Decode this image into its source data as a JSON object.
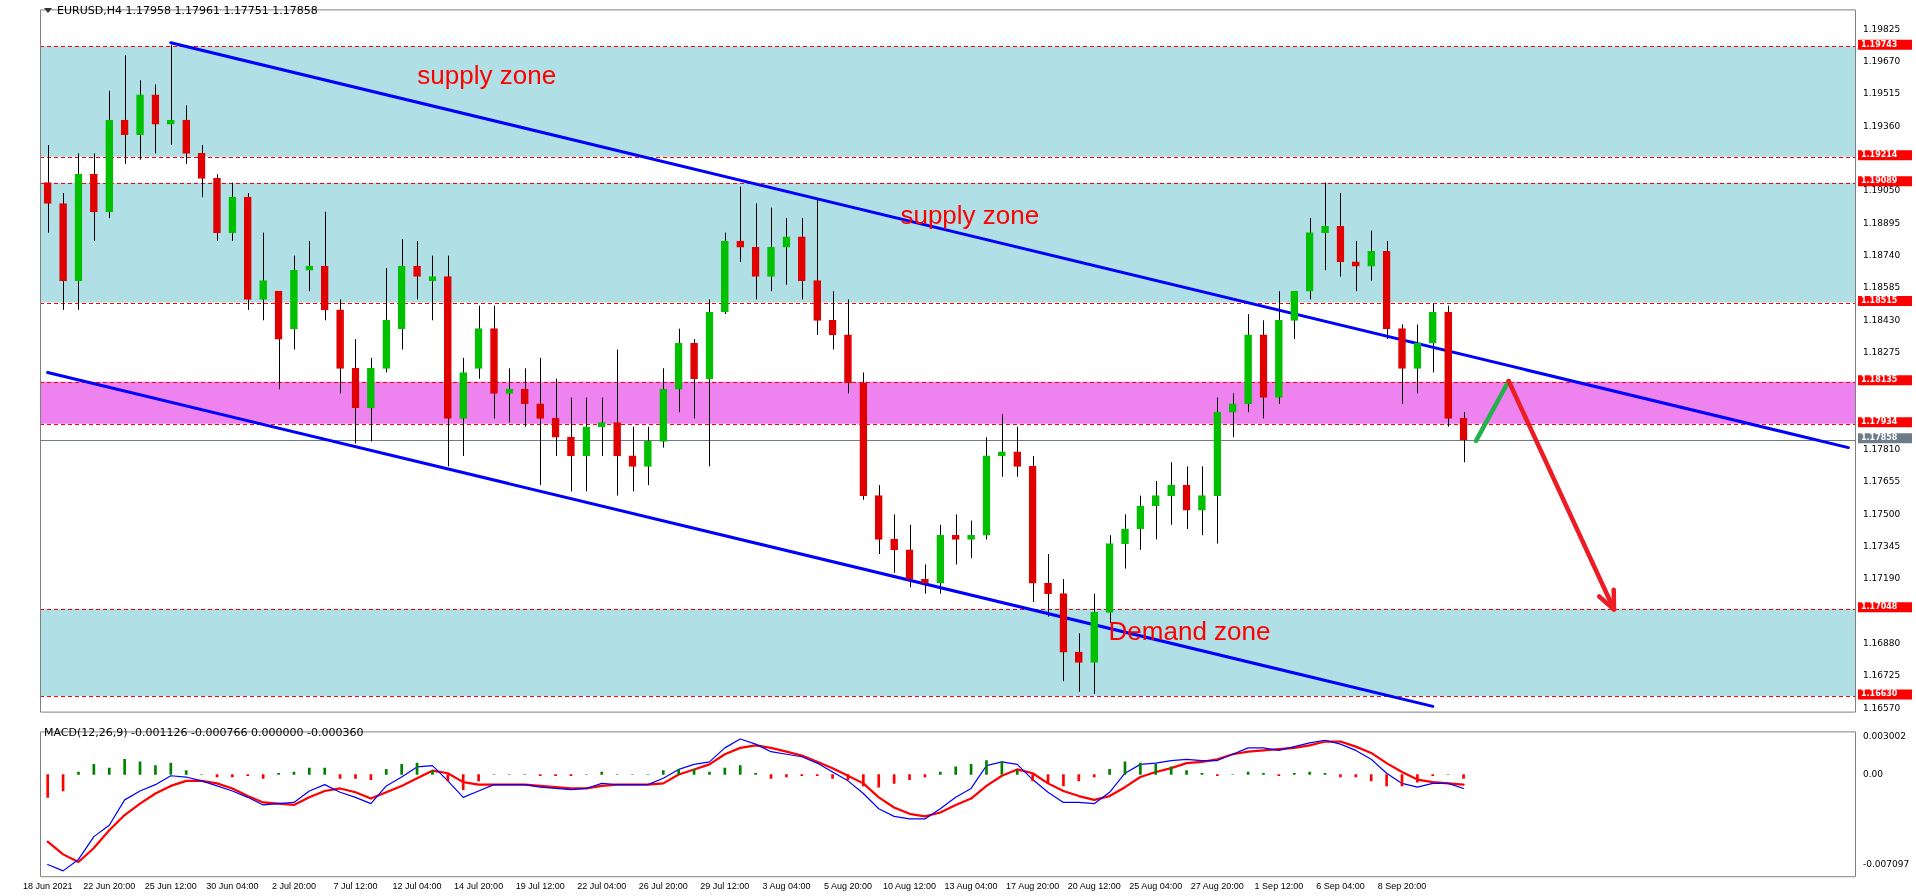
{
  "chart_data": [
    {
      "type": "candlestick",
      "title": "EURUSD,H4 1.17958 1.17961 1.17751 1.17858",
      "categories": [
        null,
        null,
        null,
        null,
        null,
        null,
        null,
        null,
        null,
        null,
        null,
        null,
        null,
        null,
        null,
        null,
        null,
        null,
        null,
        null,
        null,
        null,
        null,
        null,
        null,
        null,
        null,
        null,
        null,
        null,
        null,
        null,
        null,
        null,
        null,
        null,
        null,
        null,
        null,
        null,
        null,
        null,
        null,
        null,
        null,
        null,
        null,
        null,
        null,
        null,
        null,
        null,
        null,
        null,
        null,
        null,
        null,
        null,
        null,
        null,
        null,
        null,
        null,
        null,
        null,
        null,
        null,
        null,
        null,
        null,
        null,
        null,
        null,
        null,
        null,
        null,
        null,
        null,
        null,
        null,
        null,
        null,
        null,
        null,
        null,
        null,
        null,
        null,
        null,
        null,
        null,
        null,
        null,
        null,
        null,
        null,
        null,
        null,
        null,
        null,
        null,
        null,
        null,
        null,
        null,
        null,
        null,
        null,
        null,
        null,
        null,
        null,
        null,
        null,
        null,
        null,
        null,
        null
      ],
      "ohlc": [
        [
          1.1909,
          1.1927,
          1.1885,
          1.1899
        ],
        [
          1.1899,
          1.1904,
          1.1848,
          1.1862
        ],
        [
          1.1862,
          1.1923,
          1.1848,
          1.1913
        ],
        [
          1.1913,
          1.1923,
          1.1881,
          1.1895
        ],
        [
          1.1895,
          1.1953,
          1.1892,
          1.1939
        ],
        [
          1.1939,
          1.197,
          1.1918,
          1.1932
        ],
        [
          1.1932,
          1.1958,
          1.192,
          1.1951
        ],
        [
          1.1951,
          1.1956,
          1.1923,
          1.1937
        ],
        [
          1.1937,
          1.1975,
          1.1927,
          1.1939
        ],
        [
          1.1939,
          1.1946,
          1.1918,
          1.1923
        ],
        [
          1.1923,
          1.1927,
          1.1902,
          1.1911
        ],
        [
          1.1911,
          1.1913,
          1.1881,
          1.1885
        ],
        [
          1.1885,
          1.1909,
          1.1881,
          1.1902
        ],
        [
          1.1902,
          1.1904,
          1.1848,
          1.1853
        ],
        [
          1.1853,
          1.1885,
          1.1843,
          1.1862
        ],
        [
          1.1857,
          1.1857,
          1.181,
          1.1834
        ],
        [
          1.1839,
          1.1874,
          1.1829,
          1.1867
        ],
        [
          1.1867,
          1.1881,
          1.1857,
          1.1869
        ],
        [
          1.1869,
          1.1895,
          1.1843,
          1.1848
        ],
        [
          1.1848,
          1.1853,
          1.1808,
          1.182
        ],
        [
          1.182,
          1.1834,
          1.1784,
          1.1801
        ],
        [
          1.1801,
          1.1825,
          1.1785,
          1.182
        ],
        [
          1.182,
          1.1868,
          1.1818,
          1.1843
        ],
        [
          1.1839,
          1.1882,
          1.1829,
          1.1869
        ],
        [
          1.1869,
          1.1881,
          1.1853,
          1.1864
        ],
        [
          1.1862,
          1.1874,
          1.1843,
          1.1864
        ],
        [
          1.1864,
          1.1874,
          1.1773,
          1.1796
        ],
        [
          1.1796,
          1.1825,
          1.1778,
          1.1818
        ],
        [
          1.182,
          1.185,
          1.1815,
          1.1839
        ],
        [
          1.1839,
          1.185,
          1.1796,
          1.1808
        ],
        [
          1.1808,
          1.182,
          1.1794,
          1.181
        ],
        [
          1.181,
          1.182,
          1.1792,
          1.1803
        ],
        [
          1.1803,
          1.1825,
          1.1764,
          1.1796
        ],
        [
          1.1796,
          1.1815,
          1.1778,
          1.1787
        ],
        [
          1.1787,
          1.1806,
          1.1761,
          1.1778
        ],
        [
          1.1778,
          1.1806,
          1.1761,
          1.1792
        ],
        [
          1.1792,
          1.1806,
          1.1778,
          1.1794
        ],
        [
          1.1794,
          1.1829,
          1.1759,
          1.1778
        ],
        [
          1.1778,
          1.1792,
          1.1761,
          1.1773
        ],
        [
          1.1773,
          1.1792,
          1.1764,
          1.1785
        ],
        [
          1.1785,
          1.182,
          1.1782,
          1.181
        ],
        [
          1.181,
          1.1839,
          1.1799,
          1.1832
        ],
        [
          1.1832,
          1.1834,
          1.1796,
          1.1815
        ],
        [
          1.1815,
          1.1853,
          1.1773,
          1.1847
        ],
        [
          1.1847,
          1.1885,
          1.1846,
          1.1881
        ],
        [
          1.1881,
          1.1907,
          1.1871,
          1.1878
        ],
        [
          1.1878,
          1.1899,
          1.1853,
          1.1864
        ],
        [
          1.1864,
          1.1897,
          1.1857,
          1.1878
        ],
        [
          1.1878,
          1.1892,
          1.186,
          1.1883
        ],
        [
          1.1883,
          1.1892,
          1.1853,
          1.1862
        ],
        [
          1.1862,
          1.1901,
          1.1836,
          1.1843
        ],
        [
          1.1843,
          1.1857,
          1.1829,
          1.1836
        ],
        [
          1.1836,
          1.1853,
          1.1808,
          1.1813
        ],
        [
          1.1813,
          1.1818,
          1.1757,
          1.1759
        ],
        [
          1.1759,
          1.1764,
          1.1731,
          1.1738
        ],
        [
          1.1738,
          1.175,
          1.1722,
          1.1733
        ],
        [
          1.1733,
          1.1745,
          1.1715,
          1.1719
        ],
        [
          1.1719,
          1.1726,
          1.1712,
          1.1717
        ],
        [
          1.1717,
          1.1745,
          1.1712,
          1.174
        ],
        [
          1.174,
          1.175,
          1.1726,
          1.1738
        ],
        [
          1.1738,
          1.1747,
          1.1729,
          1.174
        ],
        [
          1.174,
          1.1787,
          1.1738,
          1.1778
        ],
        [
          1.1778,
          1.1798,
          1.1768,
          1.178
        ],
        [
          1.178,
          1.1792,
          1.1768,
          1.1773
        ],
        [
          1.1773,
          1.1778,
          1.1708,
          1.1717
        ],
        [
          1.1717,
          1.1731,
          1.1701,
          1.1712
        ],
        [
          1.1712,
          1.1719,
          1.167,
          1.1684
        ],
        [
          1.1684,
          1.1693,
          1.1665,
          1.1679
        ],
        [
          1.1679,
          1.1712,
          1.1664,
          1.1703
        ],
        [
          1.1703,
          1.174,
          1.1698,
          1.1736
        ],
        [
          1.1736,
          1.175,
          1.1724,
          1.1743
        ],
        [
          1.1743,
          1.1759,
          1.1733,
          1.1754
        ],
        [
          1.1754,
          1.1766,
          1.1738,
          1.1759
        ],
        [
          1.1759,
          1.1775,
          1.1745,
          1.1764
        ],
        [
          1.1764,
          1.1773,
          1.1743,
          1.1752
        ],
        [
          1.1752,
          1.1773,
          1.174,
          1.1759
        ],
        [
          1.1759,
          1.1806,
          1.1736,
          1.1799
        ],
        [
          1.1799,
          1.1808,
          1.1787,
          1.1803
        ],
        [
          1.1803,
          1.1846,
          1.1799,
          1.1836
        ],
        [
          1.1836,
          1.1843,
          1.1796,
          1.1806
        ],
        [
          1.1806,
          1.1857,
          1.1803,
          1.1843
        ],
        [
          1.1843,
          1.1857,
          1.1834,
          1.1857
        ],
        [
          1.1857,
          1.1892,
          1.1853,
          1.1885
        ],
        [
          1.1885,
          1.1909,
          1.1867,
          1.1888
        ],
        [
          1.1888,
          1.1904,
          1.1864,
          1.1871
        ],
        [
          1.1871,
          1.1881,
          1.1857,
          1.1869
        ],
        [
          1.1869,
          1.1886,
          1.1862,
          1.1876
        ],
        [
          1.1876,
          1.1881,
          1.1834,
          1.1839
        ],
        [
          1.1839,
          1.1841,
          1.1803,
          1.182
        ],
        [
          1.182,
          1.1841,
          1.1808,
          1.1832
        ],
        [
          1.1832,
          1.1851,
          1.1818,
          1.1847
        ],
        [
          1.1847,
          1.185,
          1.1792,
          1.1796
        ],
        [
          1.1796,
          1.1799,
          1.1775,
          1.17858
        ],
        null,
        null,
        null,
        null,
        null,
        null,
        null,
        null,
        null,
        null,
        null,
        null,
        null,
        null,
        null,
        null,
        null,
        null,
        null,
        null,
        null,
        null,
        null,
        null,
        null
      ],
      "series": [
        {
          "type": "line",
          "color": "#0000ff",
          "values": [
            null,
            null,
            null,
            null,
            null,
            null,
            null,
            null,
            1.1976,
            null,
            null,
            null,
            null,
            null,
            null,
            null,
            null,
            null,
            null,
            null,
            null,
            null,
            null,
            null,
            null,
            null,
            null,
            null,
            null,
            null,
            null,
            null,
            null,
            null,
            null,
            null,
            null,
            null,
            null,
            null,
            null,
            null,
            null,
            null,
            null,
            null,
            null,
            null,
            null,
            null,
            null,
            null,
            null,
            null,
            null,
            null,
            null,
            null,
            null,
            null,
            null,
            null,
            null,
            null,
            null,
            null,
            null,
            null,
            null,
            null,
            null,
            null,
            null,
            null,
            null,
            null,
            null,
            null,
            null,
            null,
            null,
            null,
            null,
            null,
            null,
            null,
            null,
            null,
            null,
            null,
            null,
            null,
            null,
            null,
            null,
            null,
            null,
            null,
            null,
            null,
            null,
            null,
            null,
            null,
            null,
            null,
            null,
            null,
            null,
            null,
            null,
            null,
            null,
            null,
            null,
            null,
            null,
            1.1782
          ]
        },
        {
          "type": "line",
          "color": "#0000ff",
          "values": [
            1.1818,
            null,
            null,
            null,
            null,
            null,
            null,
            null,
            null,
            null,
            null,
            null,
            null,
            null,
            null,
            null,
            null,
            null,
            null,
            null,
            null,
            null,
            null,
            null,
            null,
            null,
            null,
            null,
            null,
            null,
            null,
            null,
            null,
            null,
            null,
            null,
            null,
            null,
            null,
            null,
            null,
            null,
            null,
            null,
            null,
            null,
            null,
            null,
            null,
            null,
            null,
            null,
            null,
            null,
            null,
            null,
            null,
            null,
            null,
            null,
            null,
            null,
            null,
            null,
            null,
            null,
            null,
            null,
            null,
            null,
            null,
            null,
            null,
            null,
            null,
            null,
            null,
            null,
            null,
            null,
            null,
            null,
            null,
            null,
            null,
            null,
            null,
            null,
            null,
            null,
            1.1658,
            null,
            null,
            null,
            null,
            null,
            null,
            null,
            null,
            null,
            null,
            null,
            null,
            null,
            null,
            null,
            null,
            null,
            null,
            null,
            null,
            null,
            null,
            null,
            null,
            null,
            null,
            null
          ]
        }
      ],
      "ylim": [
        1.1655,
        1.1992
      ],
      "yticks": [
        {
          "value": 1.19825,
          "label": "1.19825"
        },
        {
          "value": 1.1967,
          "label": "1.19670"
        },
        {
          "value": 1.19515,
          "label": "1.19515"
        },
        {
          "value": 1.1936,
          "label": "1.19360"
        },
        {
          "value": 1.1905,
          "label": "1.19050"
        },
        {
          "value": 1.18895,
          "label": "1.18895"
        },
        {
          "value": 1.1874,
          "label": "1.18740"
        },
        {
          "value": 1.18585,
          "label": "1.18585"
        },
        {
          "value": 1.1843,
          "label": "1.18430"
        },
        {
          "value": 1.18275,
          "label": "1.18275"
        },
        {
          "value": 1.1781,
          "label": "1.17810"
        },
        {
          "value": 1.17655,
          "label": "1.17655"
        },
        {
          "value": 1.175,
          "label": "1.17500"
        },
        {
          "value": 1.17345,
          "label": "1.17345"
        },
        {
          "value": 1.1719,
          "label": "1.17190"
        },
        {
          "value": 1.1688,
          "label": "1.16880"
        },
        {
          "value": 1.16725,
          "label": "1.16725"
        },
        {
          "value": 1.1657,
          "label": "1.16570"
        }
      ],
      "ref_lines": [
        {
          "axis": "y",
          "value": 1.19743,
          "label": "1.19743",
          "color": "#ff0000",
          "line_style": "dashed"
        },
        {
          "axis": "y",
          "value": 1.19214,
          "label": "1.19214",
          "color": "#ff0000",
          "line_style": "dashed"
        },
        {
          "axis": "y",
          "value": 1.19089,
          "label": "1.19089",
          "color": "#ff0000",
          "line_style": "dashed"
        },
        {
          "axis": "y",
          "value": 1.18515,
          "label": "1.18515",
          "color": "#ff0000",
          "line_style": "dashed"
        },
        {
          "axis": "y",
          "value": 1.18135,
          "label": "1.18135",
          "color": "#ff0000",
          "line_style": "dashed"
        },
        {
          "axis": "y",
          "value": 1.17934,
          "label": "1.17934",
          "color": "#ff0000",
          "line_style": "dashed"
        },
        {
          "axis": "y",
          "value": 1.17048,
          "label": "1.17048",
          "color": "#ff0000",
          "line_style": "dashed"
        },
        {
          "axis": "y",
          "value": 1.1663,
          "label": "1.16630",
          "color": "#ff0000",
          "line_style": "dashed"
        },
        {
          "axis": "y",
          "value": 1.17858,
          "label": "1.17858",
          "color": "#6e7c8a",
          "line_style": "solid"
        }
      ],
      "bands": [
        {
          "axis": "y",
          "from": 1.19214,
          "to": 1.19743,
          "color": "#b0dfe5",
          "label": "supply zone"
        },
        {
          "axis": "y",
          "from": 1.18515,
          "to": 1.19089,
          "color": "#b0dfe5",
          "label": "supply zone"
        },
        {
          "axis": "y",
          "from": 1.17934,
          "to": 1.18135,
          "color": "#ee82ee"
        },
        {
          "axis": "y",
          "from": 1.1663,
          "to": 1.17048,
          "color": "#b0dfe5",
          "label": "Demand zone"
        }
      ],
      "tick_labels": "y"
    },
    {
      "type": "bar",
      "title": "MACD(12,26,9) -0.001126 -0.000766 0.000000 -0.000360",
      "categories": [
        "18 Jun 2021",
        null,
        null,
        null,
        "22 Jun 20:00",
        null,
        null,
        null,
        "25 Jun 12:00",
        null,
        null,
        null,
        "30 Jun 04:00",
        null,
        null,
        null,
        "2 Jul 20:00",
        null,
        null,
        null,
        "7 Jul 12:00",
        null,
        null,
        null,
        "12 Jul 04:00",
        null,
        null,
        null,
        "14 Jul 20:00",
        null,
        null,
        null,
        "19 Jul 12:00",
        null,
        null,
        null,
        "22 Jul 04:00",
        null,
        null,
        null,
        "26 Jul 20:00",
        null,
        null,
        null,
        "29 Jul 12:00",
        null,
        null,
        null,
        "3 Aug 04:00",
        null,
        null,
        null,
        "5 Aug 20:00",
        null,
        null,
        null,
        "10 Aug 12:00",
        null,
        null,
        null,
        "13 Aug 04:00",
        null,
        null,
        null,
        "17 Aug 20:00",
        null,
        null,
        null,
        "20 Aug 12:00",
        null,
        null,
        null,
        "25 Aug 04:00",
        null,
        null,
        null,
        "27 Aug 20:00",
        null,
        null,
        null,
        "1 Sep 12:00",
        null,
        null,
        null,
        "6 Sep 04:00",
        null,
        null,
        null,
        "8 Sep 20:00",
        null,
        null,
        null,
        null,
        null,
        null,
        null,
        null,
        null,
        null,
        null,
        null,
        null,
        null,
        null,
        null,
        null,
        null,
        null,
        null,
        null,
        null,
        null,
        null,
        null,
        null,
        null,
        null,
        null
      ],
      "series": [
        {
          "type": "bar",
          "colors": [
            "#ff0000",
            "#ff0000",
            "#008000",
            "#008000",
            "#008000",
            "#008000",
            "#008000",
            "#008000",
            "#008000",
            "#008000",
            "#008000",
            "#ff0000",
            "#ff0000",
            "#ff0000",
            "#ff0000",
            "#008000",
            "#008000",
            "#008000",
            "#008000",
            "#ff0000",
            "#ff0000",
            "#ff0000",
            "#008000",
            "#008000",
            "#008000",
            "#008000",
            "#ff0000",
            "#ff0000",
            "#ff0000",
            "#008000",
            "#008000",
            "#008000",
            "#ff0000",
            "#ff0000",
            "#ff0000",
            "#ff0000",
            "#008000",
            "#008000",
            "#008000",
            "#008000",
            "#008000",
            "#008000",
            "#008000",
            "#008000",
            "#008000",
            "#008000",
            "#008000",
            "#ff0000",
            "#ff0000",
            "#ff0000",
            "#ff0000",
            "#ff0000",
            "#ff0000",
            "#ff0000",
            "#ff0000",
            "#ff0000",
            "#ff0000",
            "#ff0000",
            "#008000",
            "#008000",
            "#008000",
            "#008000",
            "#008000",
            "#008000",
            "#ff0000",
            "#ff0000",
            "#ff0000",
            "#ff0000",
            "#ff0000",
            "#008000",
            "#008000",
            "#008000",
            "#008000",
            "#008000",
            "#008000",
            "#008000",
            "#ff0000",
            "#008000",
            "#008000",
            "#008000",
            "#ff0000",
            "#008000",
            "#008000",
            "#008000",
            "#ff0000",
            "#ff0000",
            "#ff0000",
            "#ff0000",
            "#ff0000",
            "#ff0000",
            "#ff0000",
            "#008000",
            "#ff0000",
            null,
            null,
            null,
            null,
            null,
            null,
            null,
            null,
            null,
            null,
            null,
            null,
            null,
            null,
            null,
            null,
            null,
            null,
            null,
            null,
            null,
            null,
            null,
            null,
            null
          ],
          "values": [
            -0.0018,
            -0.0013,
            0.0002,
            0.0008,
            0.0005,
            0.0012,
            0.001,
            0.0007,
            0.0009,
            0.0003,
            0,
            -0.0002,
            -0.0002,
            -0.0001,
            -0.0003,
            0.0001,
            0.0002,
            0.0005,
            0.0005,
            -0.0003,
            -0.0003,
            -0.0004,
            0.0004,
            0.0008,
            0.0009,
            0.0003,
            -0.0005,
            -0.0012,
            -0.0005,
            0,
            0,
            0,
            -0.0001,
            -0.0001,
            -0.0001,
            0,
            0.0002,
            0,
            0,
            0,
            0.0003,
            0.0004,
            0.0004,
            0.0002,
            0.0005,
            0.0007,
            0.0001,
            -0.0003,
            -0.0002,
            -0.0001,
            -0.0001,
            -0.0003,
            -0.0004,
            -0.0009,
            -0.001,
            -0.0007,
            -0.0004,
            -0.0002,
            0.0002,
            0.0006,
            0.0008,
            0.0011,
            0.001,
            0.0003,
            -0.0005,
            -0.0007,
            -0.0009,
            -0.0005,
            -0.0002,
            0.0004,
            0.001,
            0.0009,
            0.0008,
            0.0006,
            0.0003,
            0.0001,
            -0.0001,
            0,
            0.0002,
            0.0001,
            -0.0001,
            0.0001,
            0.0002,
            0.0001,
            -0.0002,
            -0.0002,
            -0.0005,
            -0.0009,
            -0.0009,
            -0.0006,
            -0.0001,
            0,
            -0.0003,
            null,
            null,
            null,
            null,
            null,
            null,
            null,
            null,
            null,
            null,
            null,
            null,
            null,
            null,
            null,
            null,
            null,
            null,
            null,
            null,
            null,
            null,
            null,
            null,
            null
          ]
        },
        {
          "type": "line",
          "color": "#0000ff",
          "values": [
            -0.0071,
            -0.0076,
            -0.0067,
            -0.0049,
            -0.004,
            -0.002,
            -0.0013,
            -0.0008,
            -0.0001,
            -0.0002,
            -0.0005,
            -0.0009,
            -0.0013,
            -0.0018,
            -0.0024,
            -0.0023,
            -0.0022,
            -0.0013,
            -0.0008,
            -0.0014,
            -0.0018,
            -0.0023,
            -0.0009,
            -0.0002,
            0.0006,
            0.0007,
            -0.0005,
            -0.0018,
            -0.0013,
            -0.0008,
            -0.0008,
            -0.0008,
            -0.001,
            -0.0011,
            -0.0012,
            -0.0011,
            -0.0007,
            -0.0008,
            -0.0008,
            -0.0008,
            -0.0003,
            0.0004,
            0.0008,
            0.001,
            0.0021,
            0.0028,
            0.0024,
            0.0018,
            0.0016,
            0.0014,
            0.0009,
            0.0002,
            -0.0005,
            -0.0015,
            -0.0027,
            -0.0033,
            -0.0035,
            -0.0035,
            -0.0027,
            -0.0018,
            -0.0011,
            0.0007,
            0.001,
            0.0008,
            -0.0004,
            -0.0014,
            -0.0022,
            -0.0022,
            -0.0023,
            -0.0014,
            0.0001,
            0.0008,
            0.0009,
            0.0011,
            0.0012,
            0.0011,
            0.0011,
            0.0016,
            0.0021,
            0.0021,
            0.0019,
            0.0022,
            0.0025,
            0.0027,
            0.0024,
            0.0019,
            0.0012,
            0.0001,
            -0.0007,
            -0.001,
            -0.0007,
            -0.0007,
            -0.0011,
            null,
            null,
            null,
            null,
            null,
            null,
            null,
            null,
            null,
            null,
            null,
            null,
            null,
            null,
            null,
            null,
            null,
            null,
            null,
            null,
            null,
            null,
            null,
            null,
            null
          ]
        },
        {
          "type": "line",
          "color": "#ff0000",
          "values": [
            -0.0053,
            -0.0063,
            -0.0069,
            -0.0058,
            -0.0044,
            -0.0032,
            -0.0023,
            -0.0015,
            -0.0009,
            -0.0005,
            -0.0005,
            -0.0007,
            -0.0011,
            -0.0017,
            -0.0022,
            -0.0023,
            -0.0024,
            -0.0018,
            -0.0013,
            -0.0011,
            -0.0014,
            -0.0019,
            -0.0014,
            -0.0009,
            -0.0003,
            0.0003,
            0.0001,
            -0.0006,
            -0.0008,
            -0.0008,
            -0.0008,
            -0.0008,
            -0.0009,
            -0.001,
            -0.0011,
            -0.0011,
            -0.0009,
            -0.0008,
            -0.0008,
            -0.0008,
            -0.0007,
            0,
            0.0004,
            0.0008,
            0.0016,
            0.0021,
            0.0023,
            0.0021,
            0.0018,
            0.0015,
            0.001,
            0.0005,
            -0.0001,
            -0.0007,
            -0.0018,
            -0.0026,
            -0.0031,
            -0.0033,
            -0.003,
            -0.0024,
            -0.0019,
            -0.0009,
            -0.0001,
            0.0004,
            0.0001,
            -0.0007,
            -0.0013,
            -0.0017,
            -0.002,
            -0.0017,
            -0.001,
            -0.0002,
            0.0002,
            0.0005,
            0.0009,
            0.001,
            0.0012,
            0.0016,
            0.0018,
            0.0019,
            0.002,
            0.0021,
            0.0023,
            0.0026,
            0.0026,
            0.0022,
            0.0017,
            0.0009,
            0.0002,
            -0.0004,
            -0.0006,
            -0.0007,
            -0.0008,
            null,
            null,
            null,
            null,
            null,
            null,
            null,
            null,
            null,
            null,
            null,
            null,
            null,
            null,
            null,
            null,
            null,
            null,
            null,
            null,
            null,
            null,
            null,
            null,
            null
          ]
        }
      ],
      "ylim": [
        -0.0081,
        0.0034
      ],
      "yticks": [
        {
          "value": 0.003002,
          "label": "0.003002"
        },
        {
          "value": 0,
          "label": "0.00"
        },
        {
          "value": -0.007097,
          "label": "-0.007097"
        }
      ]
    }
  ]
}
